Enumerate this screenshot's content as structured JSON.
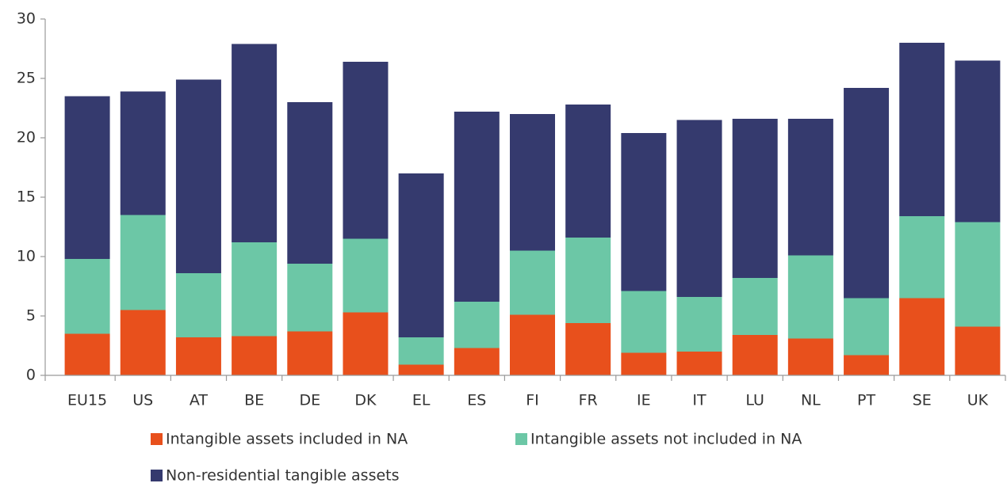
{
  "chart_data": {
    "type": "stacked_bar",
    "categories": [
      "EU15",
      "US",
      "AT",
      "BE",
      "DE",
      "DK",
      "EL",
      "ES",
      "FI",
      "FR",
      "IE",
      "IT",
      "LU",
      "NL",
      "PT",
      "SE",
      "UK"
    ],
    "series": [
      {
        "name": "Intangible assets included in NA",
        "color": "#e8501c",
        "values": [
          3.5,
          5.5,
          3.2,
          3.3,
          3.7,
          5.3,
          0.9,
          2.3,
          5.1,
          4.4,
          1.9,
          2.0,
          3.4,
          3.1,
          1.7,
          6.5,
          4.1
        ]
      },
      {
        "name": "Intangible assets not included in NA",
        "color": "#6cc7a6",
        "values": [
          6.3,
          8.0,
          5.4,
          7.9,
          5.7,
          6.2,
          2.3,
          3.9,
          5.4,
          7.2,
          5.2,
          4.6,
          4.8,
          7.0,
          4.8,
          6.9,
          8.8
        ]
      },
      {
        "name": "Non-residential tangible assets",
        "color": "#353a6e",
        "values": [
          13.7,
          10.4,
          16.3,
          16.7,
          13.6,
          14.9,
          13.8,
          16.0,
          11.5,
          11.2,
          13.3,
          14.9,
          13.4,
          11.5,
          17.7,
          14.6,
          13.6
        ]
      }
    ],
    "ylim": [
      0,
      30
    ],
    "yticks": [
      0,
      5,
      10,
      15,
      20,
      25,
      30
    ]
  }
}
